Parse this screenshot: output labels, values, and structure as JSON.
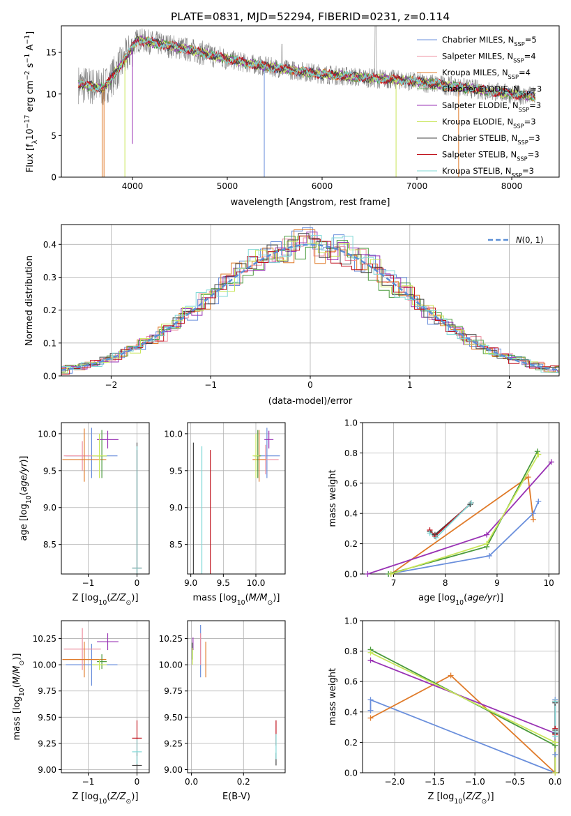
{
  "chart_data": [
    {
      "type": "line",
      "title": "PLATE=0831, MJD=52294, FIBERID=0231, z=0.114",
      "xlabel": "wavelength [Angstrom, rest frame]",
      "ylabel": "Flux [f_λ 10^-17 erg cm^-2 s^-1 A^-1]",
      "xlim": [
        3250,
        8500
      ],
      "ylim": [
        0,
        18.2
      ],
      "xticks": [
        4000,
        5000,
        6000,
        7000,
        8000
      ],
      "yticks": [
        0,
        5,
        10,
        15
      ],
      "legend": "top-right",
      "series": [
        {
          "name": "Chabrier MILES, N_SSP=5",
          "color": "#6a8fdc"
        },
        {
          "name": "Salpeter MILES, N_SSP=4",
          "color": "#ee8fa0"
        },
        {
          "name": "Kroupa MILES, N_SSP=4",
          "color": "#e07b2a"
        },
        {
          "name": "Chabrier ELODIE, N_SSP=3",
          "color": "#4a9a3c"
        },
        {
          "name": "Salpeter ELODIE, N_SSP=3",
          "color": "#9932b4"
        },
        {
          "name": "Kroupa ELODIE, N_SSP=3",
          "color": "#c8e65a"
        },
        {
          "name": "Chabrier STELIB, N_SSP=3",
          "color": "#444444"
        },
        {
          "name": "Salpeter STELIB, N_SSP=3",
          "color": "#c0141e"
        },
        {
          "name": "Kroupa STELIB, N_SSP=3",
          "color": "#7fd8d6"
        }
      ],
      "data_color": "#808080",
      "continuum": {
        "x": [
          3420,
          3700,
          3900,
          4050,
          4300,
          4600,
          4900,
          5200,
          5600,
          6000,
          6400,
          6800,
          7200,
          7600,
          8000,
          8250
        ],
        "y": [
          11.2,
          10.7,
          13.8,
          16.5,
          16.0,
          15.3,
          14.5,
          13.7,
          13.0,
          12.4,
          12.0,
          11.7,
          11.2,
          10.6,
          10.0,
          9.7
        ]
      }
    },
    {
      "type": "area",
      "xlabel": "(data-model)/error",
      "ylabel": "Normed distribution",
      "xlim": [
        -2.5,
        2.5
      ],
      "ylim": [
        0,
        0.46
      ],
      "xticks": [
        -2,
        -1,
        0,
        1,
        2
      ],
      "yticks": [
        0.0,
        0.1,
        0.2,
        0.3,
        0.4
      ],
      "legend_label": "N(0,1)",
      "gaussian_color": "#5b8fd6",
      "hist_colors": [
        "#6a8fdc",
        "#ee8fa0",
        "#e07b2a",
        "#4a9a3c",
        "#9932b4",
        "#c8e65a",
        "#444444",
        "#c0141e",
        "#7fd8d6"
      ]
    },
    {
      "type": "scatter",
      "xlabel": "Z [log10(Z/Z☉)]",
      "ylabel": "age [log10(age/yr)]",
      "xlim": [
        -1.55,
        0.25
      ],
      "ylim": [
        8.1,
        10.15
      ],
      "xticks": [
        -1,
        0
      ],
      "yticks": [
        8.5,
        9.0,
        9.5,
        10.0
      ],
      "points": [
        {
          "x": -0.93,
          "y": 9.7,
          "xerr": 0.53,
          "yerr": 0.38,
          "color": "#6a8fdc"
        },
        {
          "x": -1.12,
          "y": 9.7,
          "xerr": 0.38,
          "yerr": 0.2,
          "color": "#ee8fa0"
        },
        {
          "x": -1.08,
          "y": 9.65,
          "xerr": 0.45,
          "yerr": 0.42,
          "color": "#e07b2a"
        },
        {
          "x": -0.72,
          "y": 9.7,
          "xerr": 0.1,
          "yerr": 0.35,
          "color": "#4a9a3c"
        },
        {
          "x": -0.6,
          "y": 9.92,
          "xerr": 0.22,
          "yerr": 0.12,
          "color": "#9932b4"
        },
        {
          "x": -0.77,
          "y": 9.7,
          "xerr": 0.15,
          "yerr": 0.3,
          "color": "#c8e65a"
        },
        {
          "x": 0.0,
          "y": 8.18,
          "xerr": 0.1,
          "yerr": 1.7,
          "color": "#444444"
        },
        {
          "x": 0.0,
          "y": 8.18,
          "xerr": 0.1,
          "yerr": 1.6,
          "color": "#c0141e"
        },
        {
          "x": 0.0,
          "y": 8.18,
          "xerr": 0.1,
          "yerr": 1.65,
          "color": "#7fd8d6"
        }
      ]
    },
    {
      "type": "scatter",
      "xlabel": "mass [log10(M/M☉)]",
      "ylabel": "",
      "xlim": [
        8.95,
        10.45
      ],
      "ylim": [
        8.1,
        10.15
      ],
      "xticks": [
        9.0,
        9.5,
        10.0
      ],
      "yticks": [
        8.5,
        9.0,
        9.5,
        10.0
      ],
      "points": [
        {
          "x": 10.17,
          "y": 9.7,
          "xerr": 0.2,
          "yerr": 0.38,
          "color": "#6a8fdc"
        },
        {
          "x": 10.15,
          "y": 9.65,
          "xerr": 0.2,
          "yerr": 0.2,
          "color": "#ee8fa0"
        },
        {
          "x": 10.05,
          "y": 9.65,
          "xerr": 0.1,
          "yerr": 0.4,
          "color": "#e07b2a"
        },
        {
          "x": 10.03,
          "y": 9.7,
          "xerr": 0.05,
          "yerr": 0.35,
          "color": "#4a9a3c"
        },
        {
          "x": 10.2,
          "y": 9.92,
          "xerr": 0.07,
          "yerr": 0.12,
          "color": "#9932b4"
        },
        {
          "x": 10.0,
          "y": 9.7,
          "xerr": 0.05,
          "yerr": 0.3,
          "color": "#c8e65a"
        },
        {
          "x": 9.04,
          "y": 8.18,
          "xerr": 0.0,
          "yerr": 1.7,
          "color": "#444444"
        },
        {
          "x": 9.3,
          "y": 8.18,
          "xerr": 0.0,
          "yerr": 1.6,
          "color": "#c0141e"
        },
        {
          "x": 9.17,
          "y": 8.18,
          "xerr": 0.0,
          "yerr": 1.65,
          "color": "#7fd8d6"
        }
      ]
    },
    {
      "type": "line",
      "xlabel": "age [log10(age/yr)]",
      "ylabel": "mass weight",
      "xlim": [
        6.4,
        10.2
      ],
      "ylim": [
        0,
        1
      ],
      "xticks": [
        7,
        8,
        9,
        10
      ],
      "yticks": [
        0.0,
        0.2,
        0.4,
        0.6,
        0.8,
        1.0
      ],
      "series": [
        {
          "color": "#6a8fdc",
          "x": [
            6.9,
            8.85,
            9.7,
            9.8
          ],
          "y": [
            0.0,
            0.12,
            0.4,
            0.48
          ]
        },
        {
          "color": "#e07b2a",
          "x": [
            6.95,
            9.6,
            9.7
          ],
          "y": [
            0.0,
            0.64,
            0.36
          ]
        },
        {
          "color": "#4a9a3c",
          "x": [
            6.9,
            8.8,
            9.78
          ],
          "y": [
            0.0,
            0.18,
            0.81
          ]
        },
        {
          "color": "#9932b4",
          "x": [
            6.5,
            8.8,
            10.05
          ],
          "y": [
            0.0,
            0.26,
            0.74
          ]
        },
        {
          "color": "#c8e65a",
          "x": [
            6.95,
            8.8,
            9.8
          ],
          "y": [
            0.0,
            0.2,
            0.79
          ]
        },
        {
          "color": "#444444",
          "x": [
            7.7,
            7.8,
            8.48
          ],
          "y": [
            0.28,
            0.26,
            0.46
          ]
        },
        {
          "color": "#c0141e",
          "x": [
            7.7,
            7.8,
            8.5
          ],
          "y": [
            0.29,
            0.25,
            0.47
          ]
        },
        {
          "color": "#7fd8d6",
          "x": [
            7.7,
            7.82,
            8.5
          ],
          "y": [
            0.27,
            0.24,
            0.47
          ]
        }
      ]
    },
    {
      "type": "scatter",
      "xlabel": "Z [log10(Z/Z☉)]",
      "ylabel": "mass [log10(M/M☉)]",
      "xlim": [
        -1.55,
        0.25
      ],
      "ylim": [
        8.97,
        10.42
      ],
      "xticks": [
        -1,
        0
      ],
      "yticks": [
        9.0,
        9.25,
        9.5,
        9.75,
        10.0,
        10.25
      ],
      "points": [
        {
          "x": -0.93,
          "y": 10.0,
          "xerr": 0.53,
          "yerr": 0.2,
          "color": "#6a8fdc"
        },
        {
          "x": -1.12,
          "y": 10.15,
          "xerr": 0.38,
          "yerr": 0.2,
          "color": "#ee8fa0"
        },
        {
          "x": -1.08,
          "y": 10.05,
          "xerr": 0.45,
          "yerr": 0.17,
          "color": "#e07b2a"
        },
        {
          "x": -0.72,
          "y": 10.03,
          "xerr": 0.1,
          "yerr": 0.07,
          "color": "#4a9a3c"
        },
        {
          "x": -0.6,
          "y": 10.22,
          "xerr": 0.22,
          "yerr": 0.08,
          "color": "#9932b4"
        },
        {
          "x": -0.77,
          "y": 10.0,
          "xerr": 0.15,
          "yerr": 0.05,
          "color": "#c8e65a"
        },
        {
          "x": 0.0,
          "y": 9.04,
          "xerr": 0.1,
          "yerr": 0.12,
          "color": "#444444"
        },
        {
          "x": 0.0,
          "y": 9.3,
          "xerr": 0.1,
          "yerr": 0.17,
          "color": "#c0141e"
        },
        {
          "x": 0.0,
          "y": 9.17,
          "xerr": 0.1,
          "yerr": 0.12,
          "color": "#7fd8d6"
        }
      ]
    },
    {
      "type": "scatter",
      "xlabel": "E(B-V)",
      "ylabel": "",
      "xlim": [
        -0.015,
        0.36
      ],
      "ylim": [
        8.97,
        10.42
      ],
      "xticks": [
        0.0,
        0.2
      ],
      "yticks": [
        9.0,
        9.25,
        9.5,
        9.75,
        10.0,
        10.25
      ],
      "points": [
        {
          "x": 0.035,
          "y": 10.13,
          "xerr": 0.0,
          "yerr": 0.25,
          "color": "#6a8fdc"
        },
        {
          "x": 0.035,
          "y": 10.15,
          "xerr": 0.0,
          "yerr": 0.15,
          "color": "#ee8fa0"
        },
        {
          "x": 0.055,
          "y": 10.05,
          "xerr": 0.0,
          "yerr": 0.17,
          "color": "#e07b2a"
        },
        {
          "x": 0.003,
          "y": 10.13,
          "xerr": 0.0,
          "yerr": 0.08,
          "color": "#4a9a3c"
        },
        {
          "x": 0.006,
          "y": 10.2,
          "xerr": 0.0,
          "yerr": 0.06,
          "color": "#9932b4"
        },
        {
          "x": 0.004,
          "y": 10.08,
          "xerr": 0.0,
          "yerr": 0.08,
          "color": "#c8e65a"
        },
        {
          "x": 0.325,
          "y": 9.1,
          "xerr": 0.0,
          "yerr": 0.06,
          "color": "#444444"
        },
        {
          "x": 0.325,
          "y": 9.35,
          "xerr": 0.0,
          "yerr": 0.12,
          "color": "#c0141e"
        },
        {
          "x": 0.325,
          "y": 9.22,
          "xerr": 0.0,
          "yerr": 0.12,
          "color": "#7fd8d6"
        }
      ]
    },
    {
      "type": "line",
      "xlabel": "Z [log10(Z/Z☉)]",
      "ylabel": "mass weight",
      "xlim": [
        -2.4,
        0.05
      ],
      "ylim": [
        0,
        1
      ],
      "xticks": [
        -2.0,
        -1.5,
        -1.0,
        -0.5,
        0.0
      ],
      "yticks": [
        0.0,
        0.2,
        0.4,
        0.6,
        0.8,
        1.0
      ],
      "series": [
        {
          "color": "#6a8fdc",
          "x": [
            -2.3,
            -2.3,
            0.0,
            0.0,
            0.0
          ],
          "y": [
            0.41,
            0.48,
            0.0,
            0.12,
            0.48
          ]
        },
        {
          "color": "#e07b2a",
          "x": [
            -2.3,
            -1.3,
            0.0,
            0.0
          ],
          "y": [
            0.36,
            0.64,
            0.0,
            0.0
          ]
        },
        {
          "color": "#4a9a3c",
          "x": [
            -2.3,
            0.0,
            0.0
          ],
          "y": [
            0.81,
            0.18,
            0.0
          ]
        },
        {
          "color": "#9932b4",
          "x": [
            -2.3,
            0.0,
            0.0
          ],
          "y": [
            0.74,
            0.26,
            0.0
          ]
        },
        {
          "color": "#c8e65a",
          "x": [
            -2.3,
            0.0,
            0.0
          ],
          "y": [
            0.79,
            0.2,
            0.0
          ]
        },
        {
          "color": "#444444",
          "x": [
            0.0,
            0.0,
            0.0
          ],
          "y": [
            0.28,
            0.26,
            0.46
          ]
        },
        {
          "color": "#c0141e",
          "x": [
            0.0,
            0.0,
            0.0
          ],
          "y": [
            0.29,
            0.25,
            0.47
          ]
        },
        {
          "color": "#7fd8d6",
          "x": [
            0.0,
            0.0,
            0.0
          ],
          "y": [
            0.27,
            0.24,
            0.47
          ]
        }
      ]
    }
  ]
}
